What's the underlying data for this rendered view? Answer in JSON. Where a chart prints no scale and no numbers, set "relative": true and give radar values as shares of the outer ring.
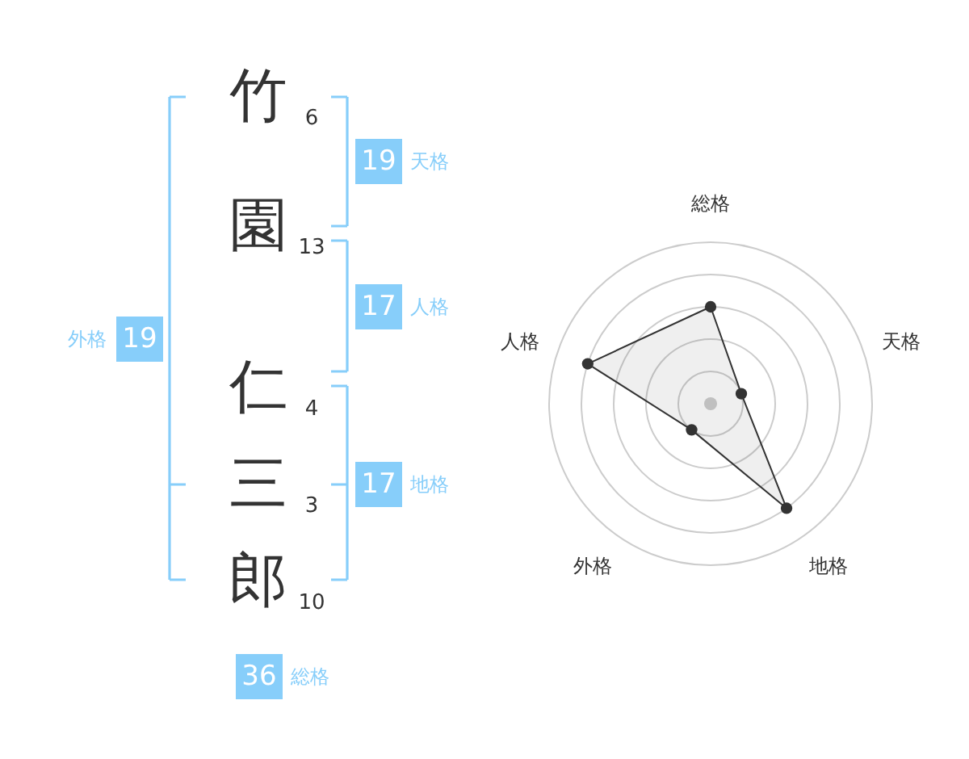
{
  "chart_data": [
    {
      "type": "other",
      "categories": [
        "竹",
        "園",
        "仁",
        "三",
        "郎"
      ],
      "values": [
        6,
        13,
        4,
        3,
        10
      ],
      "data_labels": true,
      "color": "#333333"
    },
    {
      "type": "other",
      "categories": [
        "天格",
        "人格",
        "地格",
        "外格",
        "総格"
      ],
      "values": [
        19,
        17,
        17,
        19,
        36
      ],
      "data_labels": true,
      "color": "#87cefa"
    },
    {
      "type": "radar",
      "categories": [
        "総格",
        "天格",
        "地格",
        "外格",
        "人格"
      ],
      "relative": true,
      "grid": true,
      "marker": "circle",
      "series": [
        {
          "color": "#333333",
          "values": [
            0.6,
            0.2,
            0.8,
            0.2,
            0.8
          ]
        }
      ]
    }
  ]
}
